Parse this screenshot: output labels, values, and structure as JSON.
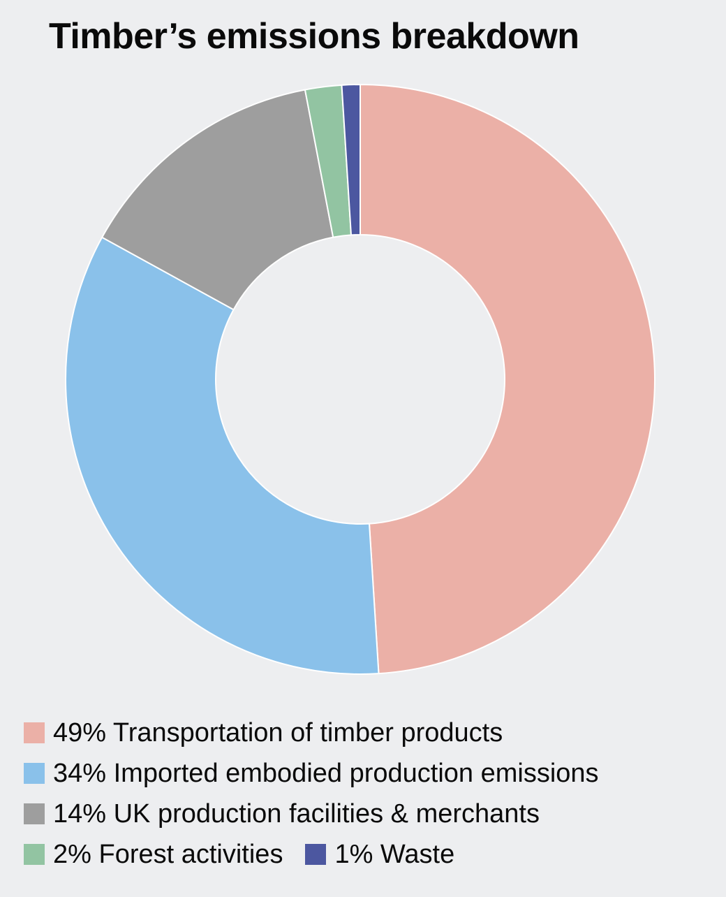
{
  "title": "Timber’s emissions breakdown",
  "chart_data": {
    "type": "pie",
    "title": "Timber’s emissions breakdown",
    "donut": true,
    "legend_placement": "bottom",
    "slices": [
      {
        "label": "Transportation of timber products",
        "value": 49,
        "legend_text": "49% Transportation of timber products",
        "color": "#ebb0a7"
      },
      {
        "label": "Imported embodied production emissions",
        "value": 34,
        "legend_text": "34% Imported embodied production emissions",
        "color": "#8ac1ea"
      },
      {
        "label": "UK production facilities & merchants",
        "value": 14,
        "legend_text": "14% UK production facilities & merchants",
        "color": "#9e9e9e"
      },
      {
        "label": "Forest activities",
        "value": 2,
        "legend_text": "2% Forest activities",
        "color": "#92c4a2"
      },
      {
        "label": "Waste",
        "value": 1,
        "legend_text": "1% Waste",
        "color": "#4c57a0"
      }
    ]
  }
}
